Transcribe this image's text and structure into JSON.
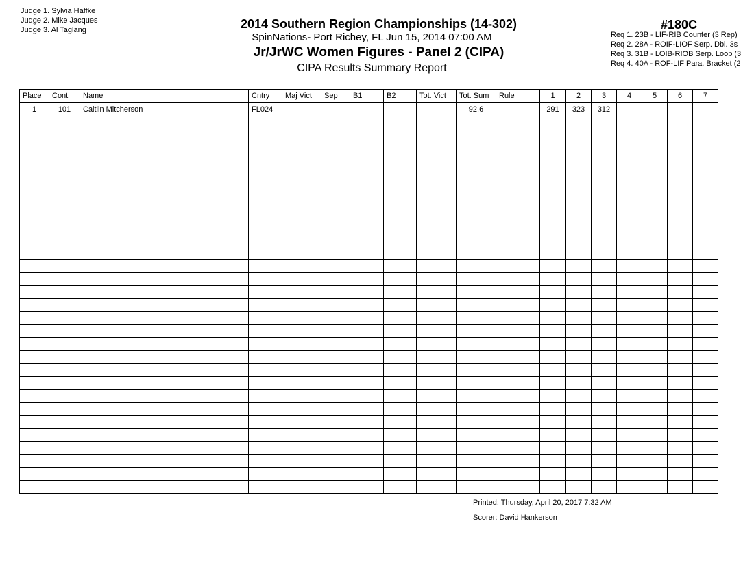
{
  "judges": [
    "Judge  1.  Sylvia Haffke",
    "Judge  2.  Mike Jacques",
    "Judge  3.  Al Taglang"
  ],
  "title": "2014 Southern Region Championships (14-302)",
  "subtitle": "SpinNations- Port Richey, FL  Jun 15, 2014  07:00 AM",
  "event": "Jr/JrWC Women Figures - Panel 2 (CIPA)",
  "report": "CIPA Results Summary Report",
  "event_number": "#180C",
  "requirements": [
    "Req  1.  23B - LIF-RIB Counter (3 Rep)",
    "Req  2.  28A - ROIF-LIOF Serp. Dbl. 3s",
    "Req  3.  31B - LOIB-RIOB Serp. Loop (3",
    "Req  4.  40A - ROF-LIF Para. Bracket (2"
  ],
  "columns": [
    "Place",
    "Cont",
    "Name",
    "Cntry",
    "Maj Vict",
    "Sep",
    "B1",
    "B2",
    "Tot. Vict",
    "Tot. Sum",
    "Rule",
    "1",
    "2",
    "3",
    "4",
    "5",
    "6",
    "7"
  ],
  "rows": [
    [
      "1",
      "101",
      "Caitlin Mitcherson",
      "FL024",
      "",
      "",
      "",
      "",
      "",
      "92.6",
      "",
      "291",
      "323",
      "312",
      "",
      "",
      "",
      ""
    ]
  ],
  "printed": "Printed:  Thursday, April 20, 2017  7:32 AM",
  "scorer": "Scorer:  David Hankerson"
}
